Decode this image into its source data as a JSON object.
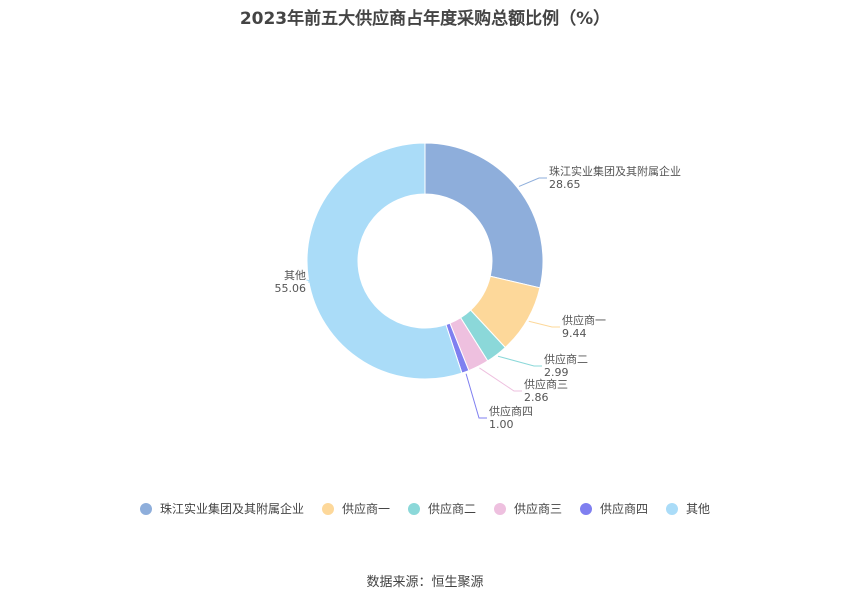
{
  "chart_data": {
    "type": "pie",
    "title": "2023年前五大供应商占年度采购总额比例（%）",
    "slices": [
      {
        "name": "珠江实业集团及其附属企业",
        "value": 28.65,
        "value_label": "28.65",
        "color": "#8eaedb"
      },
      {
        "name": "供应商一",
        "value": 9.44,
        "value_label": "9.44",
        "color": "#fdd89a"
      },
      {
        "name": "供应商二",
        "value": 2.99,
        "value_label": "2.99",
        "color": "#8bd8d9"
      },
      {
        "name": "供应商三",
        "value": 2.86,
        "value_label": "2.86",
        "color": "#eec0df"
      },
      {
        "name": "供应商四",
        "value": 1.0,
        "value_label": "1.00",
        "color": "#7f7ff0"
      },
      {
        "name": "其他",
        "value": 55.06,
        "value_label": "55.06",
        "color": "#aadcf8"
      }
    ],
    "legend_position": "bottom",
    "donut": true
  },
  "source": "数据来源：恒生聚源"
}
